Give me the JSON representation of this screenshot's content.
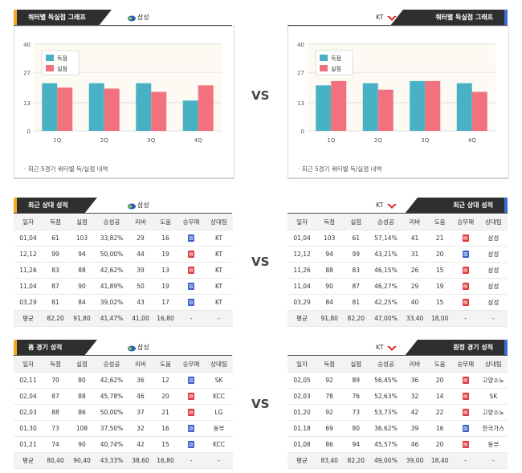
{
  "colors": {
    "scored": "#48b2c4",
    "conceded": "#f2717e",
    "win": "#3b5fc9",
    "loss": "#e0393e",
    "header": "#2f2f2f",
    "left_accent": "#f5a623",
    "right_accent": "#3b6fd8"
  },
  "vs_label": "VS",
  "quarter_section": {
    "left": {
      "title": "쿼터별 득실점 그래프",
      "team": "삼성",
      "note": "· 최근 5경기 쿼터별 득/실점 내역",
      "chart_data": {
        "type": "bar",
        "categories": [
          "1Q",
          "2Q",
          "3Q",
          "4Q"
        ],
        "series": [
          {
            "name": "득점",
            "color": "#48b2c4",
            "values": [
              22,
              22,
              22,
              14
            ]
          },
          {
            "name": "실점",
            "color": "#f2717e",
            "values": [
              20,
              19.5,
              18,
              21
            ]
          }
        ],
        "yticks": [
          0,
          13,
          27,
          40
        ],
        "ylim": [
          0,
          40
        ]
      }
    },
    "right": {
      "title": "쿼터별 득실점 그래프",
      "team": "KT",
      "note": "· 최근 5경기 쿼터별 득/실점 내역",
      "chart_data": {
        "type": "bar",
        "categories": [
          "1Q",
          "2Q",
          "3Q",
          "4Q"
        ],
        "series": [
          {
            "name": "득점",
            "color": "#48b2c4",
            "values": [
              21,
              22,
              23,
              22
            ]
          },
          {
            "name": "실점",
            "color": "#f2717e",
            "values": [
              23,
              19,
              23,
              18
            ]
          }
        ],
        "yticks": [
          0,
          13,
          27,
          40
        ],
        "ylim": [
          0,
          40
        ]
      }
    }
  },
  "columns": [
    "일자",
    "득점",
    "실점",
    "승성공",
    "리바",
    "도움",
    "승무패",
    "상대팀"
  ],
  "recent_section": {
    "left": {
      "title": "최근 상대 성적",
      "team": "삼성",
      "rows": [
        [
          "01,04",
          "61",
          "103",
          "33,82%",
          "29",
          "16",
          "w",
          "KT"
        ],
        [
          "12,12",
          "99",
          "94",
          "50,00%",
          "44",
          "19",
          "l",
          "KT"
        ],
        [
          "11,26",
          "83",
          "88",
          "42,62%",
          "39",
          "13",
          "l",
          "KT"
        ],
        [
          "11,04",
          "87",
          "90",
          "41,89%",
          "50",
          "19",
          "w",
          "KT"
        ],
        [
          "03,29",
          "81",
          "84",
          "39,02%",
          "43",
          "17",
          "w",
          "KT"
        ]
      ],
      "avg": [
        "평균",
        "82,20",
        "91,80",
        "41,47%",
        "41,00",
        "16,80",
        "-",
        "-"
      ]
    },
    "right": {
      "title": "최근 상대 성적",
      "team": "KT",
      "rows": [
        [
          "01,04",
          "103",
          "61",
          "57,14%",
          "41",
          "21",
          "l",
          "삼성"
        ],
        [
          "12,12",
          "94",
          "99",
          "43,21%",
          "31",
          "20",
          "w",
          "삼성"
        ],
        [
          "11,26",
          "88",
          "83",
          "46,15%",
          "26",
          "15",
          "l",
          "삼성"
        ],
        [
          "11,04",
          "90",
          "87",
          "46,27%",
          "29",
          "19",
          "l",
          "삼성"
        ],
        [
          "03,29",
          "84",
          "81",
          "42,25%",
          "40",
          "15",
          "l",
          "삼성"
        ]
      ],
      "avg": [
        "평균",
        "91,80",
        "82,20",
        "47,00%",
        "33,40",
        "18,00",
        "-",
        "-"
      ]
    }
  },
  "game_section": {
    "left": {
      "title": "홈 경기 성적",
      "team": "삼성",
      "rows": [
        [
          "02,11",
          "70",
          "80",
          "42,62%",
          "36",
          "12",
          "w",
          "SK"
        ],
        [
          "02,04",
          "87",
          "88",
          "45,78%",
          "46",
          "20",
          "l",
          "KCC"
        ],
        [
          "02,03",
          "88",
          "86",
          "50,00%",
          "37",
          "21",
          "l",
          "LG"
        ],
        [
          "01,30",
          "73",
          "108",
          "37,50%",
          "32",
          "16",
          "w",
          "동부"
        ],
        [
          "01,21",
          "74",
          "90",
          "40,74%",
          "42",
          "15",
          "w",
          "KCC"
        ]
      ],
      "avg": [
        "평균",
        "80,40",
        "90,40",
        "43,33%",
        "38,60",
        "16,80",
        "-",
        "-"
      ]
    },
    "right": {
      "title": "원정 경기 성적",
      "team": "KT",
      "rows": [
        [
          "02,05",
          "92",
          "89",
          "56,45%",
          "36",
          "20",
          "l",
          "고양소노"
        ],
        [
          "02,03",
          "78",
          "76",
          "52,63%",
          "32",
          "14",
          "l",
          "SK"
        ],
        [
          "01,20",
          "92",
          "73",
          "53,73%",
          "42",
          "22",
          "l",
          "고양소노"
        ],
        [
          "01,18",
          "69",
          "80",
          "36,62%",
          "39",
          "16",
          "w",
          "한국가스"
        ],
        [
          "01,08",
          "86",
          "94",
          "45,57%",
          "46",
          "20",
          "l",
          "동부"
        ]
      ],
      "avg": [
        "평균",
        "83,40",
        "82,20",
        "49,00%",
        "39,00",
        "18,40",
        "-",
        "-"
      ]
    }
  }
}
